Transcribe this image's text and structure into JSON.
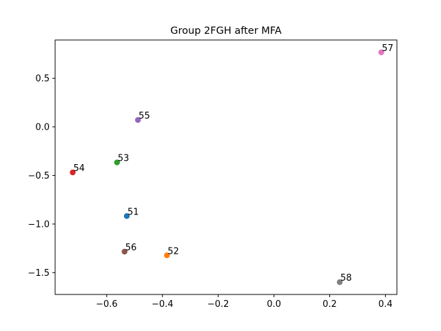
{
  "chart_data": {
    "type": "scatter",
    "title": "Group 2FGH after MFA",
    "xlabel": "",
    "ylabel": "",
    "xlim": [
      -0.7851,
      0.4411
    ],
    "ylim": [
      -1.7244,
      0.8933
    ],
    "xticks": [
      -0.6,
      -0.4,
      -0.2,
      0.0,
      0.2,
      0.4
    ],
    "xtick_labels": [
      "−0.6",
      "−0.4",
      "−0.2",
      "0.0",
      "0.2",
      "0.4"
    ],
    "yticks": [
      -1.5,
      -1.0,
      -0.5,
      0.0,
      0.5
    ],
    "ytick_labels": [
      "−1.5",
      "−1.0",
      "−0.5",
      "0.0",
      "0.5"
    ],
    "grid": false,
    "legend": "none",
    "points": [
      {
        "label": "51",
        "x": -0.528,
        "y": -0.918,
        "color": "#1f77b4"
      },
      {
        "label": "52",
        "x": -0.384,
        "y": -1.322,
        "color": "#ff7f0e"
      },
      {
        "label": "53",
        "x": -0.563,
        "y": -0.366,
        "color": "#2ca02c"
      },
      {
        "label": "54",
        "x": -0.722,
        "y": -0.469,
        "color": "#d62728"
      },
      {
        "label": "55",
        "x": -0.488,
        "y": 0.07,
        "color": "#9467bd"
      },
      {
        "label": "56",
        "x": -0.536,
        "y": -1.284,
        "color": "#8c564b"
      },
      {
        "label": "57",
        "x": 0.385,
        "y": 0.766,
        "color": "#e377c2"
      },
      {
        "label": "58",
        "x": 0.236,
        "y": -1.598,
        "color": "#7f7f7f"
      }
    ]
  }
}
